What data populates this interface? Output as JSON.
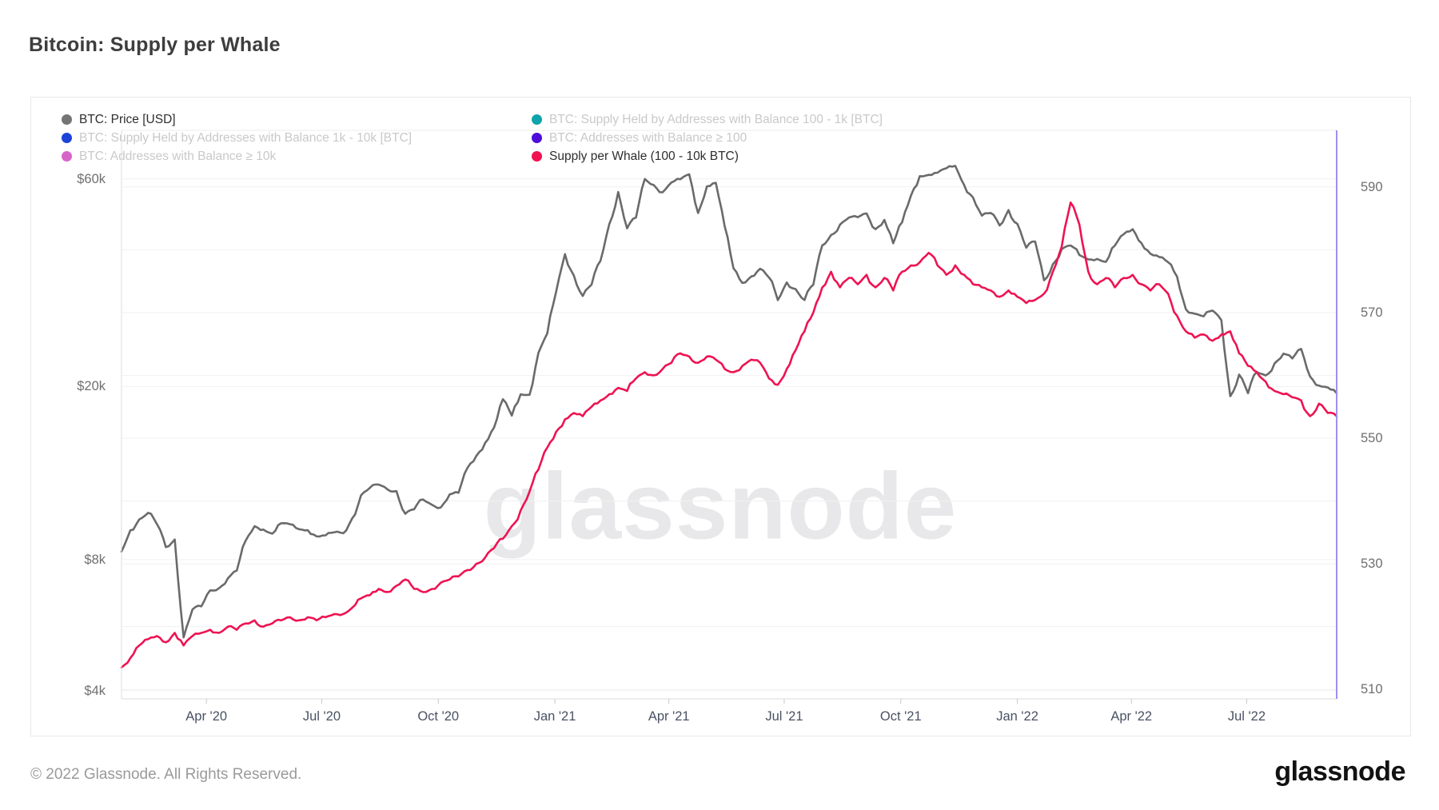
{
  "header": {
    "title": "Bitcoin: Supply per Whale"
  },
  "watermark": "glassnode",
  "footer": {
    "copyright": "© 2022 Glassnode. All Rights Reserved.",
    "logo": "glassnode"
  },
  "legend": {
    "columns": [
      [
        {
          "label": "BTC: Price [USD]",
          "color": "#757575",
          "active": true
        },
        {
          "label": "BTC: Supply Held by Addresses with Balance 1k - 10k [BTC]",
          "color": "#1d43d8",
          "active": false
        },
        {
          "label": "BTC: Addresses with Balance ≥ 10k",
          "color": "#d765c8",
          "active": false
        }
      ],
      [
        {
          "label": "BTC: Supply Held by Addresses with Balance 100 - 1k [BTC]",
          "color": "#0fa3ab",
          "active": false
        },
        {
          "label": "BTC: Addresses with Balance ≥ 100",
          "color": "#4e0cd9",
          "active": false
        },
        {
          "label": "Supply per Whale (100 - 10k BTC)",
          "color": "#f0124f",
          "active": true
        }
      ]
    ]
  },
  "chart_data": {
    "type": "line",
    "title": "Bitcoin: Supply per Whale",
    "grid": true,
    "legend_position": "top",
    "x_start": "2020-01-25",
    "x_step_days": 7,
    "x_domain": [
      "2020-01-25",
      "2022-09-10"
    ],
    "x_ticks": [
      {
        "label": "Apr '20",
        "date": "2020-04-01"
      },
      {
        "label": "Jul '20",
        "date": "2020-07-01"
      },
      {
        "label": "Oct '20",
        "date": "2020-10-01"
      },
      {
        "label": "Jan '21",
        "date": "2021-01-01"
      },
      {
        "label": "Apr '21",
        "date": "2021-04-01"
      },
      {
        "label": "Jul '21",
        "date": "2021-07-01"
      },
      {
        "label": "Oct '21",
        "date": "2021-10-01"
      },
      {
        "label": "Jan '22",
        "date": "2022-01-01"
      },
      {
        "label": "Apr '22",
        "date": "2022-04-01"
      },
      {
        "label": "Jul '22",
        "date": "2022-07-01"
      }
    ],
    "left_axis": {
      "scale": "log",
      "domain": [
        3830,
        77600
      ],
      "ticks": [
        {
          "label": "$60k",
          "value": 60000
        },
        {
          "label": "$20k",
          "value": 20000
        },
        {
          "label": "$8k",
          "value": 8000
        },
        {
          "label": "$4k",
          "value": 4000
        }
      ],
      "gridlines": [
        60000,
        20000,
        8000,
        4000
      ]
    },
    "right_axis": {
      "scale": "linear",
      "domain": [
        508.5,
        599
      ],
      "ticks": [
        {
          "label": "590",
          "value": 590
        },
        {
          "label": "570",
          "value": 570
        },
        {
          "label": "550",
          "value": 550
        },
        {
          "label": "530",
          "value": 530
        },
        {
          "label": "510",
          "value": 510
        }
      ],
      "gridlines": [
        510,
        520,
        530,
        540,
        550,
        560,
        570,
        580,
        590
      ]
    },
    "series": [
      {
        "name": "BTC: Price [USD]",
        "axis": "left",
        "color": "#6a6a6a",
        "values": [
          8350,
          9350,
          9900,
          10250,
          9650,
          8550,
          8900,
          5300,
          6150,
          6250,
          6800,
          6880,
          7250,
          7550,
          8850,
          9550,
          9380,
          9180,
          9700,
          9650,
          9400,
          9350,
          9050,
          9100,
          9250,
          9200,
          9950,
          11250,
          11700,
          11900,
          11600,
          11500,
          10200,
          10450,
          11000,
          10700,
          10550,
          11300,
          11400,
          13000,
          13850,
          14850,
          16100,
          18700,
          17150,
          19200,
          19150,
          23900,
          26500,
          33000,
          40300,
          36000,
          32300,
          34300,
          38900,
          47300,
          56000,
          46200,
          48900,
          60000,
          58100,
          55900,
          58900,
          59900,
          61500,
          50100,
          57700,
          58800,
          46700,
          37400,
          34600,
          35800,
          37300,
          35600,
          31600,
          34700,
          33500,
          31600,
          34300,
          42200,
          44600,
          47100,
          48900,
          49000,
          50000,
          46000,
          48300,
          42700,
          47700,
          54900,
          60900,
          61300,
          62000,
          63500,
          64300,
          58100,
          54400,
          49400,
          50100,
          46900,
          50900,
          47300,
          41700,
          43100,
          35100,
          38200,
          41400,
          42200,
          40100,
          39200,
          39300,
          38700,
          42200,
          44800,
          46000,
          42700,
          40400,
          39700,
          38600,
          35800,
          30100,
          29400,
          29000,
          29900,
          28400,
          19000,
          21300,
          19300,
          21600,
          21200,
          22600,
          23800,
          23200,
          24400,
          21100,
          20100,
          19900,
          19300
        ]
      },
      {
        "name": "Supply per Whale (100 - 10k BTC)",
        "axis": "right",
        "color": "#ee1352",
        "values": [
          513.5,
          515,
          517,
          518,
          518.5,
          517.5,
          519,
          517,
          518.5,
          519,
          519.5,
          519,
          520,
          519.5,
          520.5,
          521,
          520,
          520.5,
          521,
          521.5,
          521,
          521.5,
          521,
          521.5,
          522,
          522,
          523,
          524.5,
          525,
          526,
          525.5,
          526.5,
          527.5,
          526,
          525.5,
          526,
          527,
          527.5,
          528,
          529,
          530,
          531,
          532.5,
          534,
          536,
          538.5,
          541.5,
          545,
          548.5,
          551,
          553,
          554,
          553.5,
          555,
          556,
          557,
          558,
          557.5,
          559.5,
          560.5,
          560,
          561,
          562,
          563.5,
          563,
          562,
          563,
          562.5,
          561,
          560.5,
          561.5,
          562.5,
          562,
          559.5,
          558.5,
          561,
          564,
          567,
          570,
          574,
          576.5,
          574,
          575.5,
          574.5,
          576,
          574,
          575.5,
          573.5,
          576.5,
          577.5,
          578,
          579.5,
          577.5,
          576,
          577.5,
          576,
          574.5,
          574,
          573.5,
          572.5,
          573.5,
          572.5,
          571.5,
          572,
          573,
          576.5,
          580.5,
          587.5,
          584,
          576.5,
          574.5,
          575.5,
          574,
          575.5,
          576,
          574.5,
          573.5,
          574.5,
          573,
          569.5,
          567,
          566,
          566.5,
          565.5,
          566.5,
          567,
          563.5,
          561.5,
          560.5,
          559,
          557.5,
          557,
          556.5,
          556,
          553.5,
          555.5,
          554,
          553.5
        ]
      }
    ],
    "styles": {
      "gridline_color": "#f1f1f1",
      "plot_border_color": "#dcdcdc",
      "plot_top_border_color": "#ececec",
      "right_border_color": "#a18ff0",
      "tick_mark_color": "#c9c9c9",
      "line_width": 2.6
    }
  }
}
